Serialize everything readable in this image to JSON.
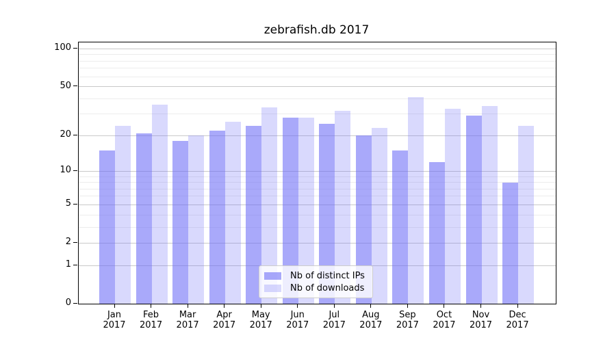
{
  "title": "zebrafish.db 2017",
  "legend": {
    "position": "lower center inside plot",
    "items": [
      {
        "label": "Nb of distinct IPs",
        "series": "ips"
      },
      {
        "label": "Nb of downloads",
        "series": "downloads"
      }
    ]
  },
  "colors": {
    "bar_base": "#6b6bf7",
    "ips_alpha": 0.58,
    "downloads_alpha": 0.26,
    "grid_major": "#c9c9c9",
    "grid_minor": "#ececec",
    "spine": "#000000"
  },
  "chart_data": {
    "type": "bar",
    "title": "zebrafish.db 2017",
    "categories": [
      "Jan 2017",
      "Feb 2017",
      "Mar 2017",
      "Apr 2017",
      "May 2017",
      "Jun 2017",
      "Jul 2017",
      "Aug 2017",
      "Sep 2017",
      "Oct 2017",
      "Nov 2017",
      "Dec 2017"
    ],
    "series": [
      {
        "name": "Nb of distinct IPs",
        "values": [
          15,
          21,
          18,
          22,
          24,
          28,
          25,
          20,
          15,
          12,
          29,
          8
        ]
      },
      {
        "name": "Nb of downloads",
        "values": [
          24,
          36,
          20,
          26,
          34,
          28,
          32,
          23,
          41,
          33,
          35,
          24
        ]
      }
    ],
    "xlabel": "",
    "ylabel": "",
    "yscale": "log1p",
    "ylim": [
      0,
      112.5
    ],
    "yticks_major": [
      0,
      1,
      2,
      5,
      10,
      20,
      50,
      100
    ],
    "yticks_minor": [
      3,
      4,
      6,
      7,
      8,
      9,
      30,
      40,
      60,
      70,
      80,
      90
    ],
    "grid": true,
    "legend_position": "lower center"
  }
}
